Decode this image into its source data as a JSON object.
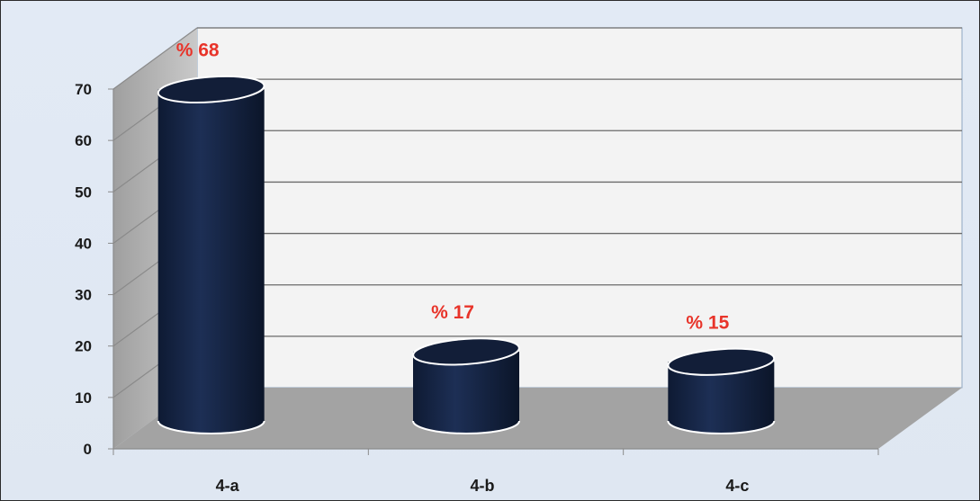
{
  "chart_data": {
    "type": "bar",
    "categories": [
      "4-a",
      "4-b",
      "4-c"
    ],
    "values": [
      68,
      17,
      15
    ],
    "data_labels": [
      "% 68",
      "% 17",
      "% 15"
    ],
    "ylim": [
      0,
      70
    ],
    "yticks": [
      "0",
      "10",
      "20",
      "30",
      "40",
      "50",
      "60",
      "70"
    ],
    "grid": true,
    "legend": "none",
    "style": "3d-cylinder",
    "colors": {
      "bar": "#14213d",
      "bar_highlight": "#2c3f66",
      "back_wall": "#f3f3f3",
      "side_wall": "#b7b7b7",
      "floor": "#a3a3a3",
      "gridline": "#6a6a6a",
      "data_label": "#e8342a",
      "background": "#dfe7f2"
    }
  }
}
